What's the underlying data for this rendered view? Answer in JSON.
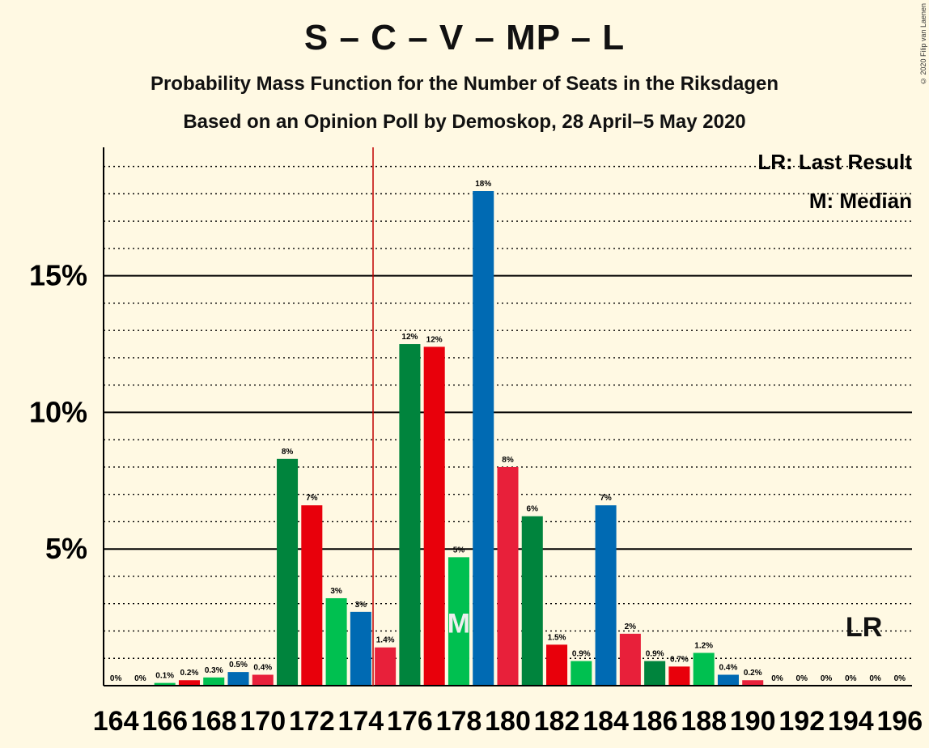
{
  "title": "S – C – V – MP – L",
  "subtitle": "Probability Mass Function for the Number of Seats in the Riksdagen",
  "subtitle2": "Based on an Opinion Poll by Demoskop, 28 April–5 May 2020",
  "copyright": "© 2020 Filip van Laenen",
  "legend": {
    "lr": "LR: Last Result",
    "m": "M: Median"
  },
  "markers": {
    "median_label": "M",
    "last_result_label": "LR"
  },
  "colors": {
    "background": "#FFF9E3",
    "dark_green": "#00843D",
    "red": "#E8000B",
    "light_green": "#00C050",
    "blue": "#006AB3",
    "crimson": "#E8203A",
    "majority_line": "#C00000"
  },
  "chart_data": {
    "type": "bar",
    "x": [
      164,
      165,
      166,
      167,
      168,
      169,
      170,
      171,
      172,
      173,
      174,
      175,
      176,
      177,
      178,
      179,
      180,
      181,
      182,
      183,
      184,
      185,
      186,
      187,
      188,
      189,
      190,
      191,
      192,
      193,
      194,
      195,
      196
    ],
    "values": [
      0,
      0,
      0.1,
      0.2,
      0.3,
      0.5,
      0.4,
      8.3,
      6.6,
      3.2,
      2.7,
      1.4,
      12.5,
      12.4,
      4.7,
      18.1,
      8,
      6.2,
      1.5,
      0.9,
      6.6,
      1.9,
      0.9,
      0.7,
      1.2,
      0.4,
      0.2,
      0,
      0,
      0,
      0,
      0,
      0
    ],
    "value_labels": [
      "0%",
      "0%",
      "0.1%",
      "0.2%",
      "0.3%",
      "0.5%",
      "0.4%",
      "8%",
      "7%",
      "3%",
      "3%",
      "1.4%",
      "12%",
      "12%",
      "5%",
      "18%",
      "8%",
      "6%",
      "1.5%",
      "0.9%",
      "7%",
      "2%",
      "0.9%",
      "0.7%",
      "1.2%",
      "0.4%",
      "0.2%",
      "0%",
      "0%",
      "0%",
      "0%",
      "0%",
      "0%"
    ],
    "bar_colors": [
      "#00843D",
      "#E8000B",
      "#00C050",
      "#E8000B",
      "#00C050",
      "#006AB3",
      "#E8203A",
      "#00843D",
      "#E8000B",
      "#00C050",
      "#006AB3",
      "#E8203A",
      "#00843D",
      "#E8000B",
      "#00C050",
      "#006AB3",
      "#E8203A",
      "#00843D",
      "#E8000B",
      "#00C050",
      "#006AB3",
      "#E8203A",
      "#00843D",
      "#E8000B",
      "#00C050",
      "#006AB3",
      "#E8203A",
      "#00843D",
      "#E8000B",
      "#00C050",
      "#006AB3",
      "#E8203A",
      "#00843D"
    ],
    "x_tick_labels": [
      "164",
      "166",
      "168",
      "170",
      "172",
      "174",
      "176",
      "178",
      "180",
      "182",
      "184",
      "186",
      "188",
      "190",
      "192",
      "194",
      "196"
    ],
    "y_ticks": [
      5,
      10,
      15
    ],
    "y_tick_labels": [
      "5%",
      "10%",
      "15%"
    ],
    "ylim": [
      0,
      19.7
    ],
    "median": 178,
    "last_result": 195,
    "majority_threshold": 174.5,
    "grid": "dotted minor, solid major",
    "legend_position": "top-right"
  }
}
